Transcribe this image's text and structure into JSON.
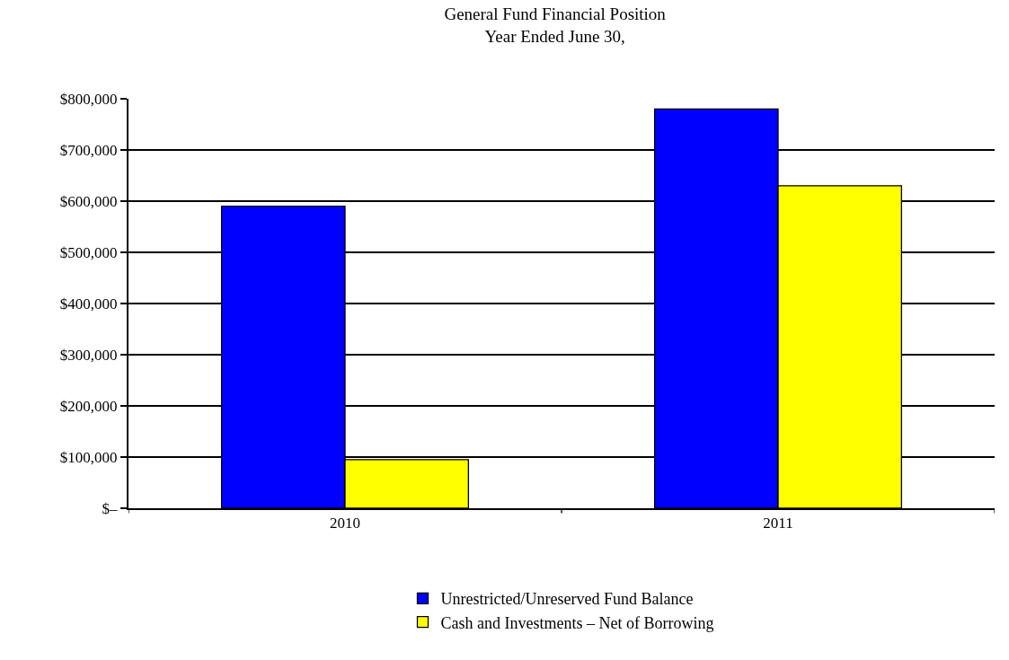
{
  "chart_data": {
    "type": "bar",
    "title": "General Fund Financial Position\nYear Ended June 30,",
    "categories": [
      "2010",
      "2011"
    ],
    "series": [
      {
        "name": "Unrestricted/Unreserved Fund Balance",
        "color": "#0000ff",
        "values": [
          590000,
          780000
        ]
      },
      {
        "name": "Cash and Investments – Net of Borrowing",
        "color": "#ffff00",
        "values": [
          95000,
          630000
        ]
      }
    ],
    "ylim": [
      0,
      800000
    ],
    "yticks": [
      {
        "value": 0,
        "label": "$–"
      },
      {
        "value": 100000,
        "label": "$100,000"
      },
      {
        "value": 200000,
        "label": "$200,000"
      },
      {
        "value": 300000,
        "label": "$300,000"
      },
      {
        "value": 400000,
        "label": "$400,000"
      },
      {
        "value": 500000,
        "label": "$500,000"
      },
      {
        "value": 600000,
        "label": "$600,000"
      },
      {
        "value": 700000,
        "label": "$700,000"
      },
      {
        "value": 800000,
        "label": "$800,000"
      }
    ],
    "grid": "y",
    "legend": "bottom"
  }
}
